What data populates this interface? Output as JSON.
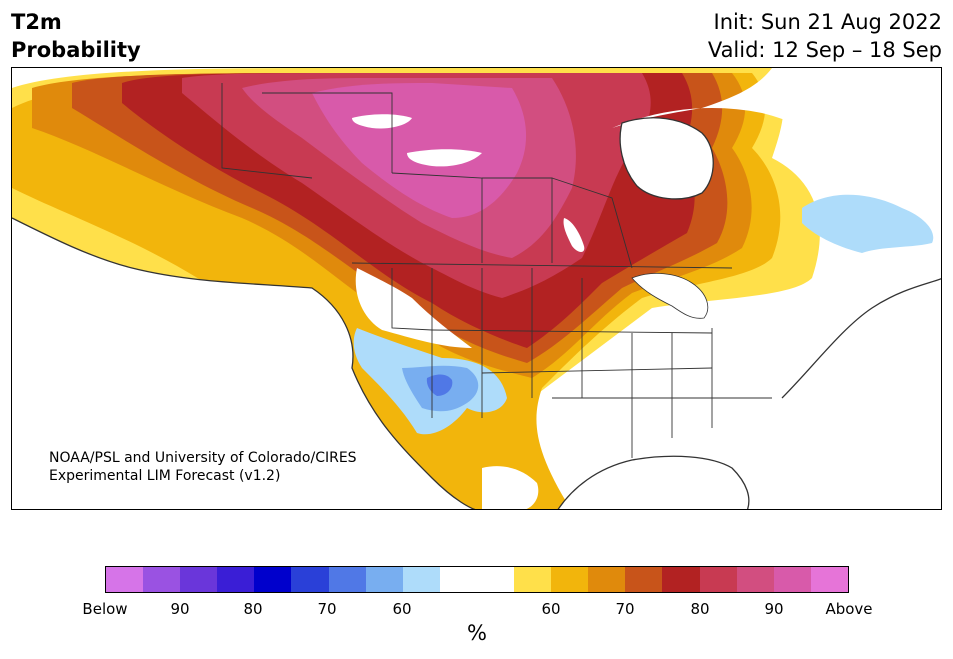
{
  "header": {
    "title_line1": "T2m",
    "title_line2": "Probability",
    "init_line": "Init: Sun 21 Aug 2022",
    "valid_line": "Valid: 12 Sep – 18 Sep"
  },
  "credit": {
    "line1": "NOAA/PSL and University of Colorado/CIRES",
    "line2": "Experimental LIM Forecast (v1.2)"
  },
  "colorbar": {
    "colors": [
      "#d674e8",
      "#9a52e2",
      "#6a36da",
      "#3a1ed6",
      "#0000cc",
      "#2a40d8",
      "#5078e6",
      "#78aef0",
      "#aedcfa",
      "#ffffff",
      "#ffffff",
      "#ffe04a",
      "#f2b50c",
      "#e08a0c",
      "#c8541a",
      "#b22222",
      "#c83a52",
      "#d24e80",
      "#d85aaa",
      "#e674d8"
    ],
    "ticks": [
      "Below",
      "90",
      "80",
      "70",
      "60",
      "60",
      "70",
      "80",
      "90",
      "Above"
    ],
    "units": "%"
  },
  "map": {
    "palette": {
      "above": "#e674d8",
      "p90": "#d85aaa",
      "p85": "#d24e80",
      "p80": "#c83a52",
      "p75": "#b22222",
      "p70": "#c8541a",
      "p65": "#e08a0c",
      "p60": "#f2b50c",
      "p55": "#ffe04a",
      "neutral": "#ffffff",
      "b55": "#aedcfa",
      "b60": "#78aef0",
      "b65": "#5078e6",
      "boundary": "#333333"
    }
  }
}
